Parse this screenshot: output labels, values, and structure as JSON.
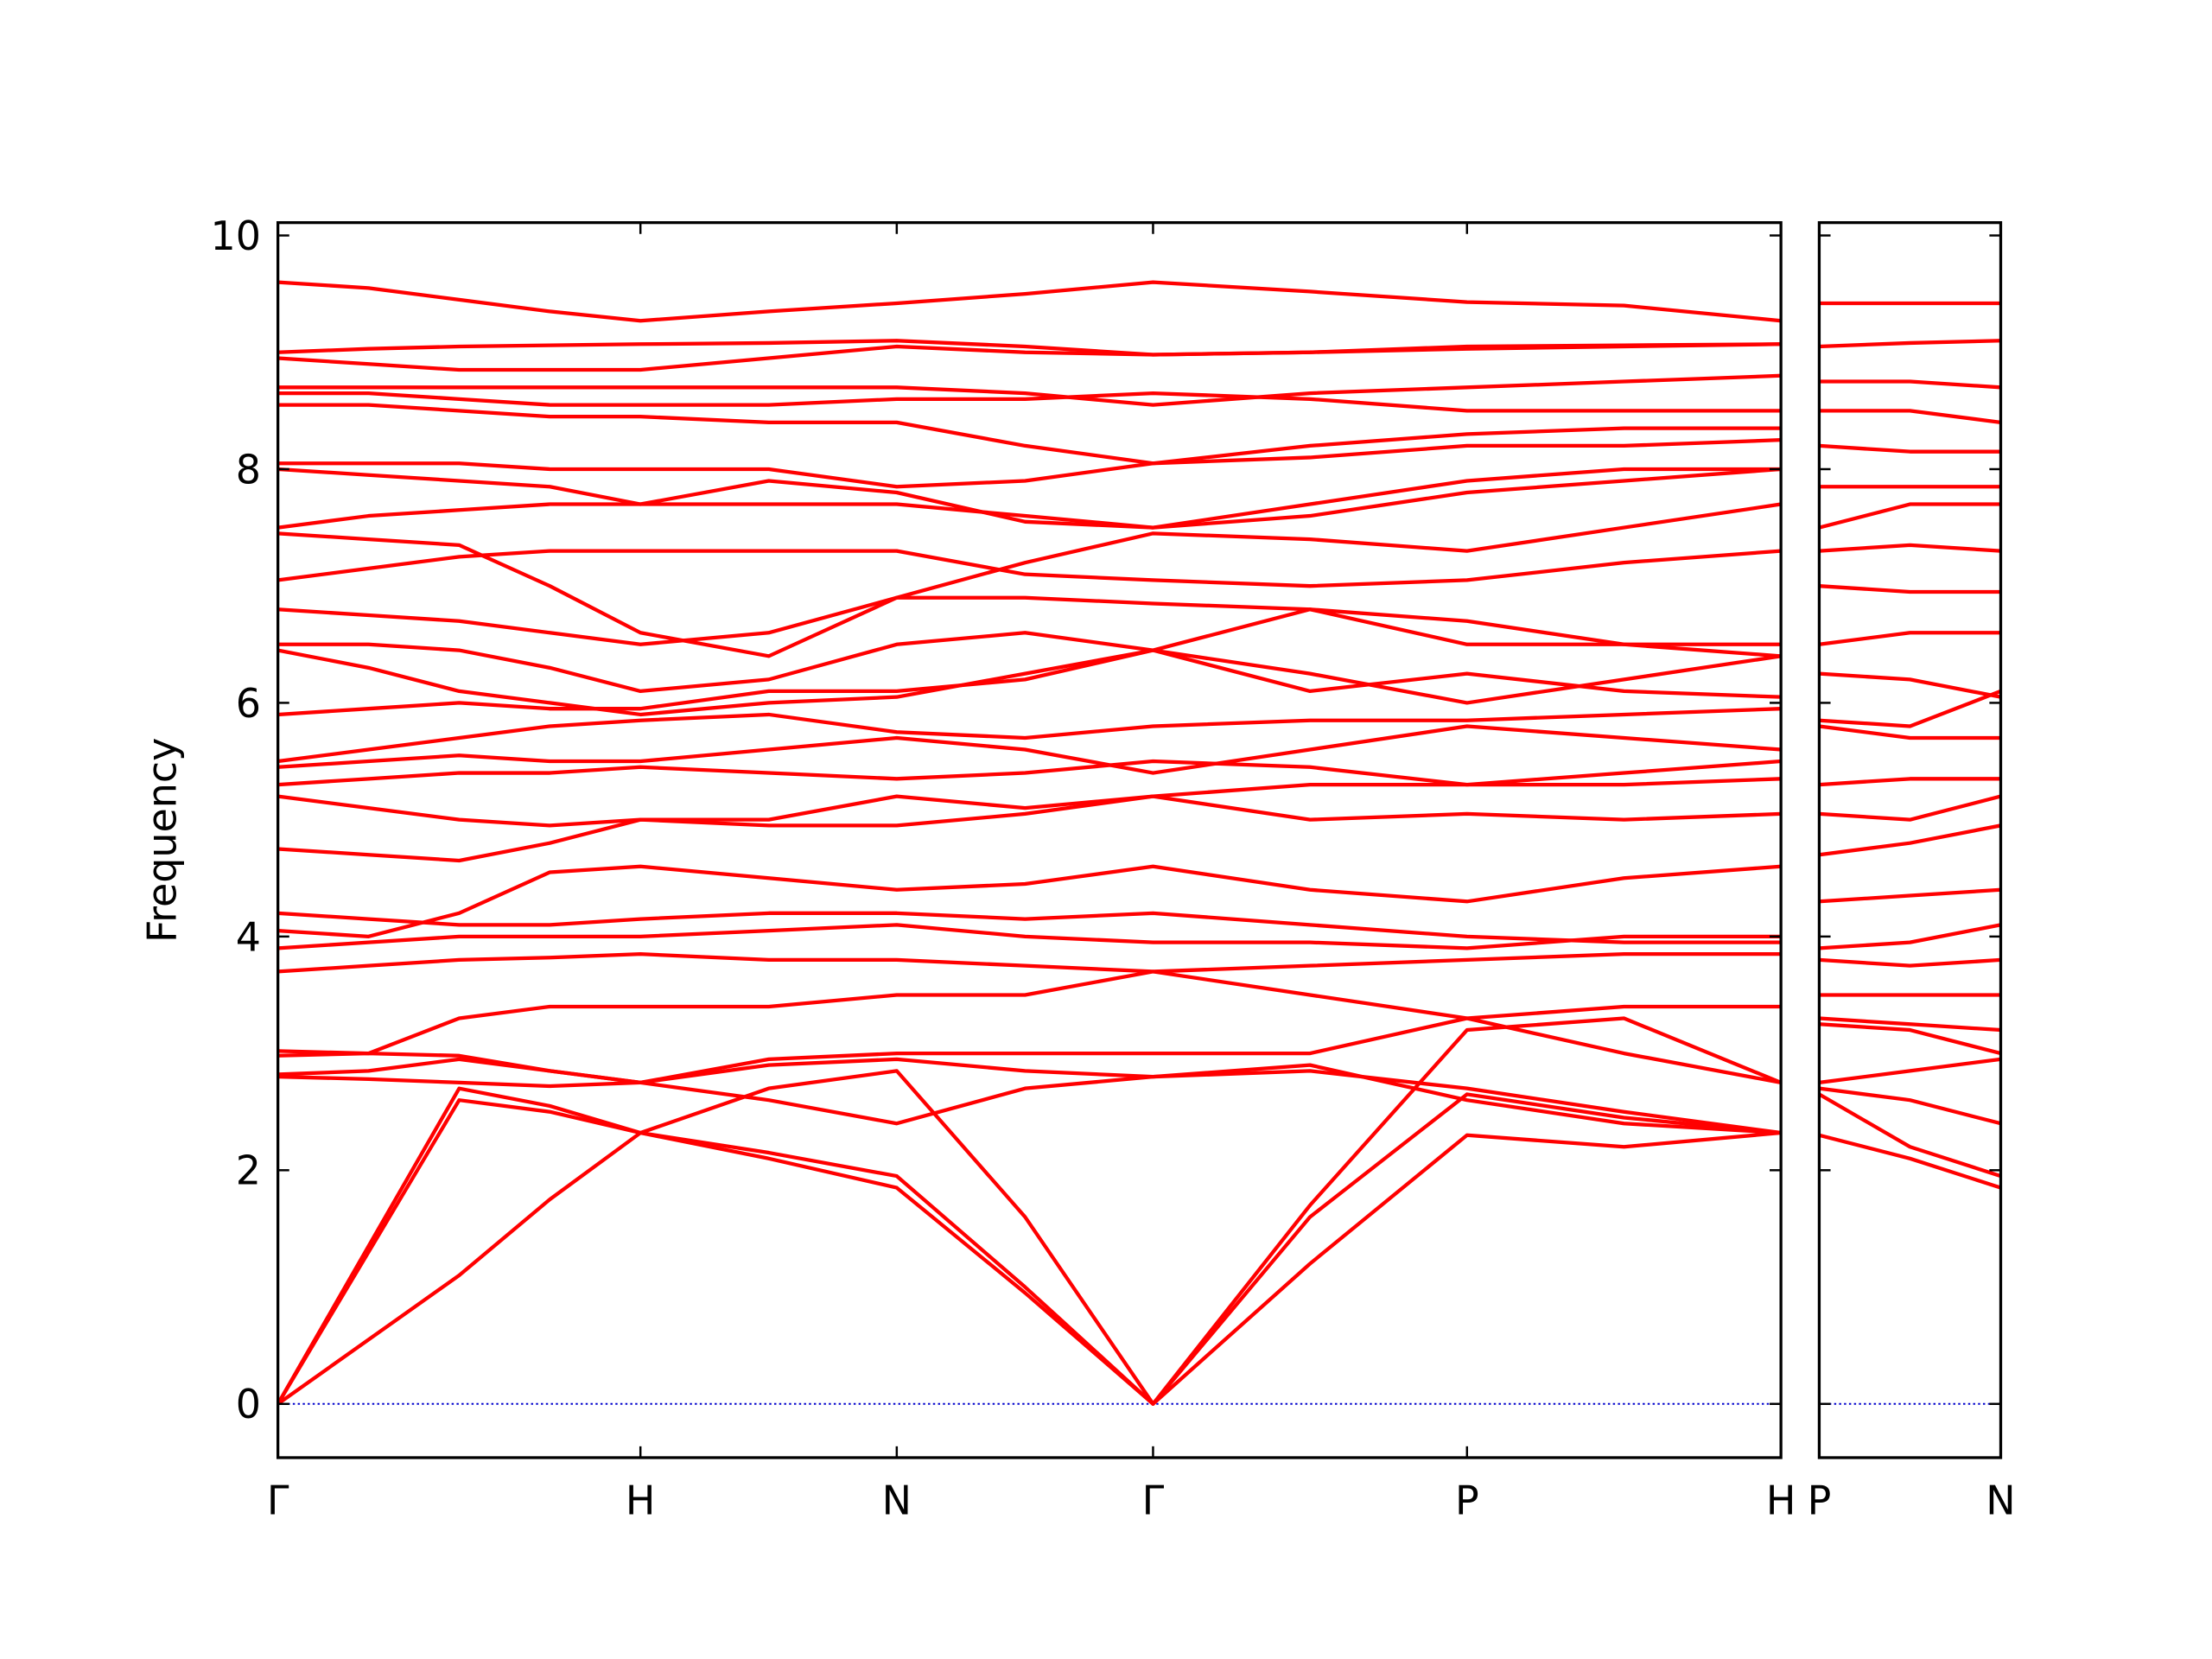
{
  "chart_data": [
    {
      "type": "line",
      "ylabel": "Frequency",
      "color": "#ff0000",
      "hline": 0,
      "hline_color": "#0000cc",
      "xlim": [
        0,
        4.146
      ],
      "ylim": [
        -0.46,
        10.11
      ],
      "xticks": [
        {
          "value": 0,
          "label": "Γ"
        },
        {
          "value": 1,
          "label": "H"
        },
        {
          "value": 1.707,
          "label": "N"
        },
        {
          "value": 2.414,
          "label": "Γ"
        },
        {
          "value": 3.28,
          "label": "P"
        },
        {
          "value": 4.146,
          "label": "H"
        }
      ],
      "yticks": [
        0,
        2,
        4,
        6,
        8,
        10
      ],
      "x": [
        0,
        0.25,
        0.5,
        0.75,
        1,
        1.354,
        1.707,
        2.061,
        2.414,
        2.847,
        3.28,
        3.713,
        4.146
      ],
      "series": [
        {
          "values": [
            0,
            0.55,
            1.1,
            1.75,
            2.32,
            2.1,
            1.85,
            0.95,
            0,
            1.2,
            2.3,
            2.2,
            2.32
          ]
        },
        {
          "values": [
            0,
            1.3,
            2.6,
            2.5,
            2.32,
            2.15,
            1.95,
            1.0,
            0,
            1.6,
            2.65,
            2.45,
            2.32
          ]
        },
        {
          "values": [
            0,
            1.35,
            2.7,
            2.55,
            2.32,
            2.7,
            2.85,
            1.6,
            0,
            1.7,
            3.2,
            3.3,
            2.75
          ]
        },
        {
          "values": [
            2.8,
            2.78,
            2.75,
            2.72,
            2.75,
            2.9,
            2.95,
            2.85,
            2.8,
            2.85,
            2.7,
            2.5,
            2.32
          ]
        },
        {
          "values": [
            2.82,
            2.85,
            2.95,
            2.85,
            2.75,
            2.6,
            2.4,
            2.7,
            2.8,
            2.9,
            2.6,
            2.4,
            2.32
          ]
        },
        {
          "values": [
            2.98,
            3.0,
            2.98,
            2.85,
            2.75,
            2.95,
            3.0,
            3.0,
            3.0,
            3.0,
            3.3,
            3.0,
            2.75
          ]
        },
        {
          "values": [
            3.02,
            3.0,
            3.3,
            3.4,
            3.4,
            3.4,
            3.5,
            3.5,
            3.7,
            3.5,
            3.3,
            3.4,
            3.4
          ]
        },
        {
          "values": [
            3.7,
            3.75,
            3.8,
            3.82,
            3.85,
            3.8,
            3.8,
            3.75,
            3.7,
            3.75,
            3.8,
            3.85,
            3.85
          ]
        },
        {
          "values": [
            3.9,
            3.95,
            4.0,
            4.0,
            4.0,
            4.05,
            4.1,
            4.0,
            3.95,
            3.95,
            3.9,
            4.0,
            4.0
          ]
        },
        {
          "values": [
            4.05,
            4.0,
            4.2,
            4.55,
            4.6,
            4.5,
            4.4,
            4.45,
            4.6,
            4.4,
            4.3,
            4.5,
            4.6
          ]
        },
        {
          "values": [
            4.2,
            4.15,
            4.1,
            4.1,
            4.15,
            4.2,
            4.2,
            4.15,
            4.2,
            4.1,
            4.0,
            3.95,
            3.95
          ]
        },
        {
          "values": [
            4.75,
            4.7,
            4.65,
            4.8,
            5.0,
            4.95,
            4.95,
            5.05,
            5.2,
            5.0,
            5.05,
            5.0,
            5.05
          ]
        },
        {
          "values": [
            5.2,
            5.1,
            5.0,
            4.95,
            5.0,
            5.0,
            5.2,
            5.1,
            5.2,
            5.3,
            5.3,
            5.3,
            5.35
          ]
        },
        {
          "values": [
            5.3,
            5.35,
            5.4,
            5.4,
            5.45,
            5.4,
            5.35,
            5.4,
            5.5,
            5.45,
            5.3,
            5.4,
            5.5
          ]
        },
        {
          "values": [
            5.45,
            5.5,
            5.55,
            5.5,
            5.5,
            5.6,
            5.7,
            5.6,
            5.4,
            5.6,
            5.8,
            5.7,
            5.6
          ]
        },
        {
          "values": [
            5.5,
            5.6,
            5.7,
            5.8,
            5.85,
            5.9,
            5.75,
            5.7,
            5.8,
            5.85,
            5.85,
            5.9,
            5.95
          ]
        },
        {
          "values": [
            5.9,
            5.95,
            6.0,
            5.95,
            5.95,
            6.1,
            6.1,
            6.2,
            6.45,
            6.1,
            6.25,
            6.1,
            6.05
          ]
        },
        {
          "values": [
            6.45,
            6.3,
            6.1,
            6.0,
            5.9,
            6.0,
            6.05,
            6.25,
            6.45,
            6.25,
            6.0,
            6.2,
            6.4
          ]
        },
        {
          "values": [
            6.5,
            6.5,
            6.45,
            6.3,
            6.1,
            6.2,
            6.5,
            6.6,
            6.45,
            6.8,
            6.5,
            6.5,
            6.5
          ]
        },
        {
          "values": [
            6.8,
            6.75,
            6.7,
            6.6,
            6.5,
            6.6,
            6.9,
            6.9,
            6.85,
            6.8,
            6.7,
            6.5,
            6.4
          ]
        },
        {
          "values": [
            7.05,
            7.15,
            7.25,
            7.3,
            7.3,
            7.3,
            7.3,
            7.1,
            7.05,
            7.0,
            7.05,
            7.2,
            7.3
          ]
        },
        {
          "values": [
            7.45,
            7.4,
            7.35,
            7.0,
            6.6,
            6.4,
            6.9,
            7.2,
            7.45,
            7.4,
            7.3,
            7.5,
            7.7
          ]
        },
        {
          "values": [
            7.5,
            7.6,
            7.65,
            7.7,
            7.7,
            7.7,
            7.7,
            7.6,
            7.5,
            7.6,
            7.8,
            7.9,
            8.0
          ]
        },
        {
          "values": [
            8.0,
            7.95,
            7.9,
            7.85,
            7.7,
            7.9,
            7.8,
            7.55,
            7.5,
            7.7,
            7.9,
            8.0,
            8.0
          ]
        },
        {
          "values": [
            8.05,
            8.05,
            8.05,
            8.0,
            8.0,
            8.0,
            7.85,
            7.9,
            8.05,
            8.1,
            8.2,
            8.2,
            8.25
          ]
        },
        {
          "values": [
            8.55,
            8.55,
            8.5,
            8.45,
            8.45,
            8.4,
            8.4,
            8.2,
            8.05,
            8.2,
            8.3,
            8.35,
            8.35
          ]
        },
        {
          "values": [
            8.65,
            8.65,
            8.6,
            8.55,
            8.55,
            8.55,
            8.6,
            8.6,
            8.65,
            8.6,
            8.5,
            8.5,
            8.5
          ]
        },
        {
          "values": [
            8.7,
            8.7,
            8.7,
            8.7,
            8.7,
            8.7,
            8.7,
            8.65,
            8.55,
            8.65,
            8.7,
            8.75,
            8.8
          ]
        },
        {
          "values": [
            8.95,
            8.9,
            8.85,
            8.85,
            8.85,
            8.95,
            9.05,
            9.0,
            8.98,
            9.0,
            9.05,
            9.06,
            9.07
          ]
        },
        {
          "values": [
            9.0,
            9.03,
            9.05,
            9.06,
            9.07,
            9.08,
            9.1,
            9.05,
            8.98,
            9.0,
            9.03,
            9.05,
            9.07
          ]
        },
        {
          "values": [
            9.6,
            9.55,
            9.45,
            9.35,
            9.27,
            9.35,
            9.42,
            9.5,
            9.6,
            9.52,
            9.43,
            9.4,
            9.27
          ]
        }
      ]
    },
    {
      "type": "line",
      "color": "#ff0000",
      "hline": 0,
      "hline_color": "#0000cc",
      "xlim": [
        0,
        0.5
      ],
      "ylim": [
        -0.46,
        10.11
      ],
      "xticks": [
        {
          "value": 0,
          "label": "P"
        },
        {
          "value": 0.5,
          "label": "N"
        }
      ],
      "x": [
        0,
        0.25,
        0.5
      ],
      "series": [
        {
          "values": [
            2.3,
            2.1,
            1.85
          ]
        },
        {
          "values": [
            2.65,
            2.2,
            1.95
          ]
        },
        {
          "values": [
            2.7,
            2.6,
            2.4
          ]
        },
        {
          "values": [
            2.75,
            2.85,
            2.95
          ]
        },
        {
          "values": [
            3.25,
            3.2,
            3.0
          ]
        },
        {
          "values": [
            3.3,
            3.25,
            3.2
          ]
        },
        {
          "values": [
            3.5,
            3.5,
            3.5
          ]
        },
        {
          "values": [
            3.8,
            3.75,
            3.8
          ]
        },
        {
          "values": [
            3.9,
            3.95,
            4.1
          ]
        },
        {
          "values": [
            4.3,
            4.35,
            4.4
          ]
        },
        {
          "values": [
            4.7,
            4.8,
            4.95
          ]
        },
        {
          "values": [
            5.05,
            5.0,
            5.2
          ]
        },
        {
          "values": [
            5.3,
            5.35,
            5.35
          ]
        },
        {
          "values": [
            5.8,
            5.7,
            5.7
          ]
        },
        {
          "values": [
            5.85,
            5.8,
            6.1
          ]
        },
        {
          "values": [
            6.25,
            6.2,
            6.05
          ]
        },
        {
          "values": [
            6.5,
            6.6,
            6.6
          ]
        },
        {
          "values": [
            7.0,
            6.95,
            6.95
          ]
        },
        {
          "values": [
            7.3,
            7.35,
            7.3
          ]
        },
        {
          "values": [
            7.5,
            7.7,
            7.7
          ]
        },
        {
          "values": [
            7.85,
            7.85,
            7.85
          ]
        },
        {
          "values": [
            8.2,
            8.15,
            8.15
          ]
        },
        {
          "values": [
            8.5,
            8.5,
            8.4
          ]
        },
        {
          "values": [
            8.75,
            8.75,
            8.7
          ]
        },
        {
          "values": [
            9.05,
            9.08,
            9.1
          ]
        },
        {
          "values": [
            9.42,
            9.42,
            9.42
          ]
        }
      ]
    }
  ]
}
